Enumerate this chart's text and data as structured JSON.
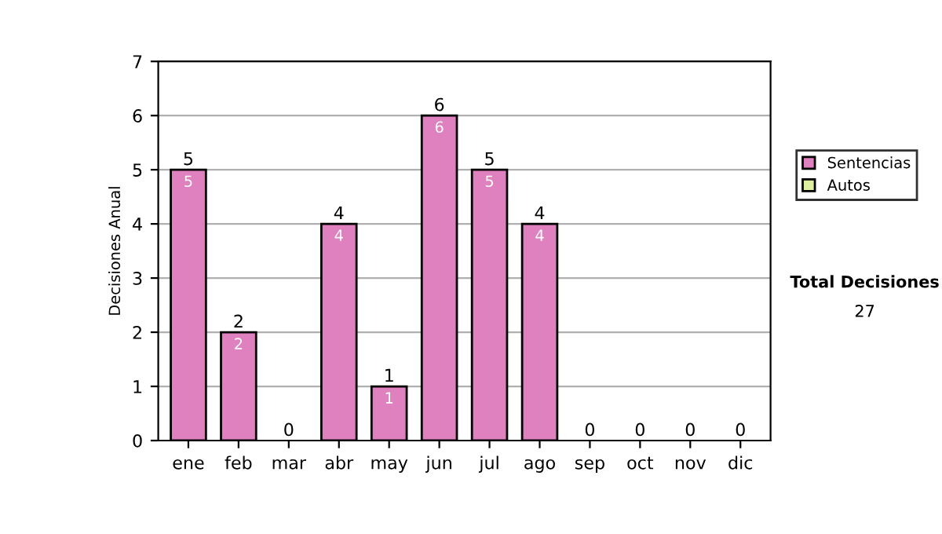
{
  "chart_data": {
    "type": "bar",
    "stacked": true,
    "ylabel": "Decisiones Anual",
    "categories": [
      "ene",
      "feb",
      "mar",
      "abr",
      "may",
      "jun",
      "jul",
      "ago",
      "sep",
      "oct",
      "nov",
      "dic"
    ],
    "series": [
      {
        "name": "Sentencias",
        "color": "#df80bf",
        "values": [
          5,
          2,
          0,
          4,
          1,
          6,
          5,
          4,
          0,
          0,
          0,
          0
        ],
        "value_labels": [
          "5",
          "2",
          null,
          "4",
          "1",
          "6",
          "5",
          "4",
          null,
          null,
          null,
          null
        ]
      },
      {
        "name": "Autos",
        "color": "#dfefa0",
        "values": [
          0,
          0,
          0,
          0,
          0,
          0,
          0,
          0,
          0,
          0,
          0,
          0
        ]
      }
    ],
    "totals": [
      "5",
      "2",
      "0",
      "4",
      "1",
      "6",
      "5",
      "4",
      "0",
      "0",
      "0",
      "0"
    ],
    "ylim": [
      0,
      7
    ],
    "yticks": [
      0,
      1,
      2,
      3,
      4,
      5,
      6,
      7
    ],
    "grid": "y",
    "legend": "right",
    "annotations": [
      "Total Decisiones",
      "27"
    ]
  }
}
